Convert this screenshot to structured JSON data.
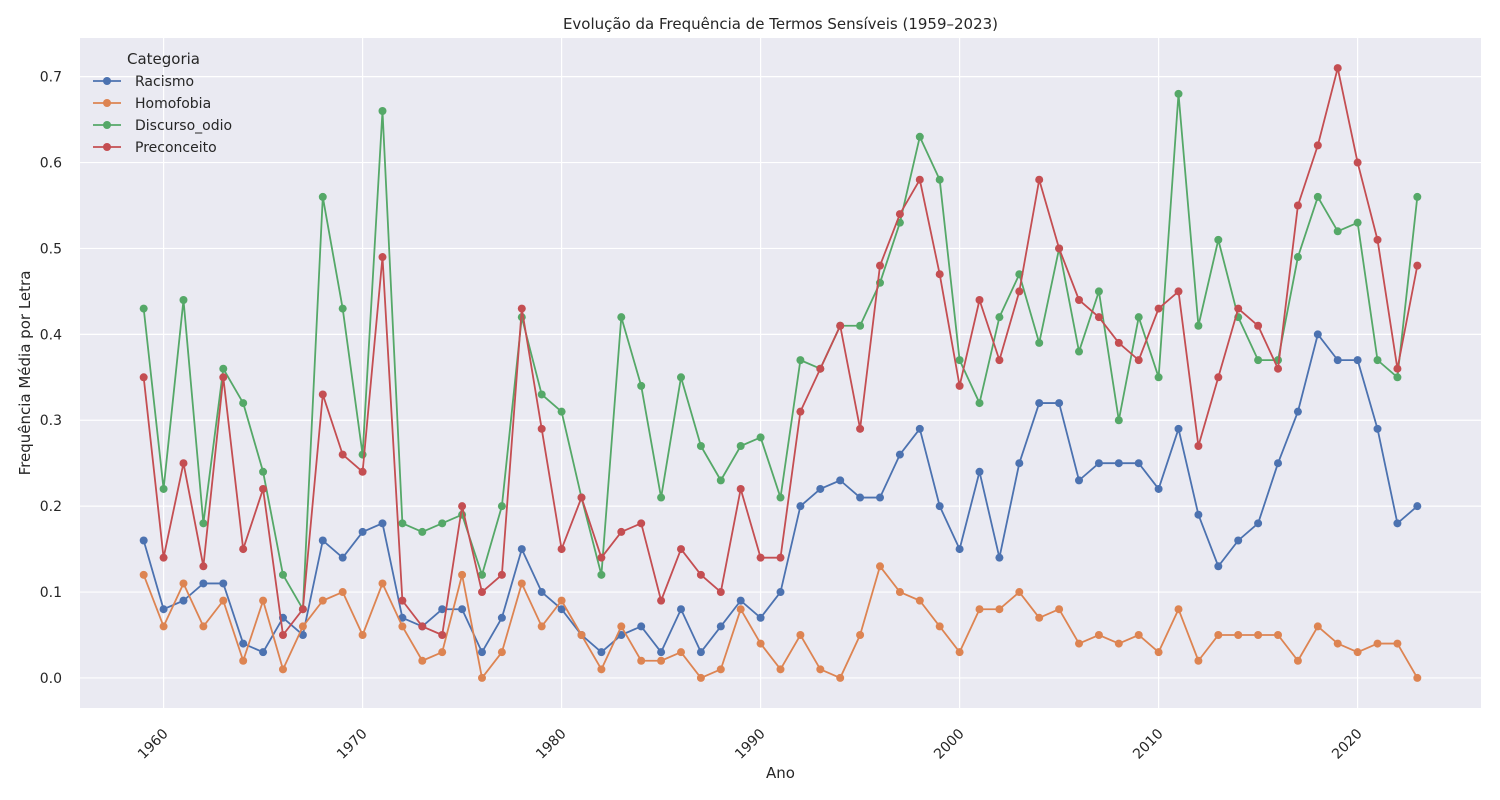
{
  "chart_data": {
    "type": "line",
    "title": "Evolução da Frequência de Termos Sensíveis (1959–2023)",
    "xlabel": "Ano",
    "ylabel": "Frequência Média por Letra",
    "xlim": [
      1955.8,
      2026.2
    ],
    "ylim": [
      -0.035,
      0.745
    ],
    "x_ticks": [
      1960,
      1970,
      1980,
      1990,
      2000,
      2010,
      2020
    ],
    "y_ticks": [
      0.0,
      0.1,
      0.2,
      0.3,
      0.4,
      0.5,
      0.6,
      0.7
    ],
    "grid": true,
    "legend_title": "Categoria",
    "legend_position": "top-left",
    "x": [
      1959,
      1960,
      1961,
      1962,
      1963,
      1964,
      1965,
      1966,
      1967,
      1968,
      1969,
      1970,
      1971,
      1972,
      1973,
      1974,
      1975,
      1976,
      1977,
      1978,
      1979,
      1980,
      1981,
      1982,
      1983,
      1984,
      1985,
      1986,
      1987,
      1988,
      1989,
      1990,
      1991,
      1992,
      1993,
      1994,
      1995,
      1996,
      1997,
      1998,
      1999,
      2000,
      2001,
      2002,
      2003,
      2004,
      2005,
      2006,
      2007,
      2008,
      2009,
      2010,
      2011,
      2012,
      2013,
      2014,
      2015,
      2016,
      2017,
      2018,
      2019,
      2020,
      2021,
      2022,
      2023
    ],
    "series": [
      {
        "name": "Racismo",
        "color": "#4c72b0",
        "values": [
          0.16,
          0.08,
          0.09,
          0.11,
          0.11,
          0.04,
          0.03,
          0.07,
          0.05,
          0.16,
          0.14,
          0.17,
          0.18,
          0.07,
          0.06,
          0.08,
          0.08,
          0.03,
          0.07,
          0.15,
          0.1,
          0.08,
          0.05,
          0.03,
          0.05,
          0.06,
          0.03,
          0.08,
          0.03,
          0.06,
          0.09,
          0.07,
          0.1,
          0.2,
          0.22,
          0.23,
          0.21,
          0.21,
          0.26,
          0.29,
          0.2,
          0.15,
          0.24,
          0.14,
          0.25,
          0.32,
          0.32,
          0.23,
          0.25,
          0.25,
          0.25,
          0.22,
          0.29,
          0.19,
          0.13,
          0.16,
          0.18,
          0.25,
          0.31,
          0.4,
          0.37,
          0.37,
          0.29,
          0.18,
          0.2
        ]
      },
      {
        "name": "Homofobia",
        "color": "#dd8452",
        "values": [
          0.12,
          0.06,
          0.11,
          0.06,
          0.09,
          0.02,
          0.09,
          0.01,
          0.06,
          0.09,
          0.1,
          0.05,
          0.11,
          0.06,
          0.02,
          0.03,
          0.12,
          0.0,
          0.03,
          0.11,
          0.06,
          0.09,
          0.05,
          0.01,
          0.06,
          0.02,
          0.02,
          0.03,
          0.0,
          0.01,
          0.08,
          0.04,
          0.01,
          0.05,
          0.01,
          0.0,
          0.05,
          0.13,
          0.1,
          0.09,
          0.06,
          0.03,
          0.08,
          0.08,
          0.1,
          0.07,
          0.08,
          0.04,
          0.05,
          0.04,
          0.05,
          0.03,
          0.08,
          0.02,
          0.05,
          0.05,
          0.05,
          0.05,
          0.02,
          0.06,
          0.04,
          0.03,
          0.04,
          0.04,
          0.0
        ]
      },
      {
        "name": "Discurso_odio",
        "color": "#55a868",
        "values": [
          0.43,
          0.22,
          0.44,
          0.18,
          0.36,
          0.32,
          0.24,
          0.12,
          0.08,
          0.56,
          0.43,
          0.26,
          0.66,
          0.18,
          0.17,
          0.18,
          0.19,
          0.12,
          0.2,
          0.42,
          0.33,
          0.31,
          0.21,
          0.12,
          0.42,
          0.34,
          0.21,
          0.35,
          0.27,
          0.23,
          0.27,
          0.28,
          0.21,
          0.37,
          0.36,
          0.41,
          0.41,
          0.46,
          0.53,
          0.63,
          0.58,
          0.37,
          0.32,
          0.42,
          0.47,
          0.39,
          0.5,
          0.38,
          0.45,
          0.3,
          0.42,
          0.35,
          0.68,
          0.41,
          0.51,
          0.42,
          0.37,
          0.37,
          0.49,
          0.56,
          0.52,
          0.53,
          0.37,
          0.35,
          0.56
        ]
      },
      {
        "name": "Preconceito",
        "color": "#c44e52",
        "values": [
          0.35,
          0.14,
          0.25,
          0.13,
          0.35,
          0.15,
          0.22,
          0.05,
          0.08,
          0.33,
          0.26,
          0.24,
          0.49,
          0.09,
          0.06,
          0.05,
          0.2,
          0.1,
          0.12,
          0.43,
          0.29,
          0.15,
          0.21,
          0.14,
          0.17,
          0.18,
          0.09,
          0.15,
          0.12,
          0.1,
          0.22,
          0.14,
          0.14,
          0.31,
          0.36,
          0.41,
          0.29,
          0.48,
          0.54,
          0.58,
          0.47,
          0.34,
          0.44,
          0.37,
          0.45,
          0.58,
          0.5,
          0.44,
          0.42,
          0.39,
          0.37,
          0.43,
          0.45,
          0.27,
          0.35,
          0.43,
          0.41,
          0.36,
          0.55,
          0.62,
          0.71,
          0.6,
          0.51,
          0.36,
          0.48
        ]
      }
    ]
  }
}
